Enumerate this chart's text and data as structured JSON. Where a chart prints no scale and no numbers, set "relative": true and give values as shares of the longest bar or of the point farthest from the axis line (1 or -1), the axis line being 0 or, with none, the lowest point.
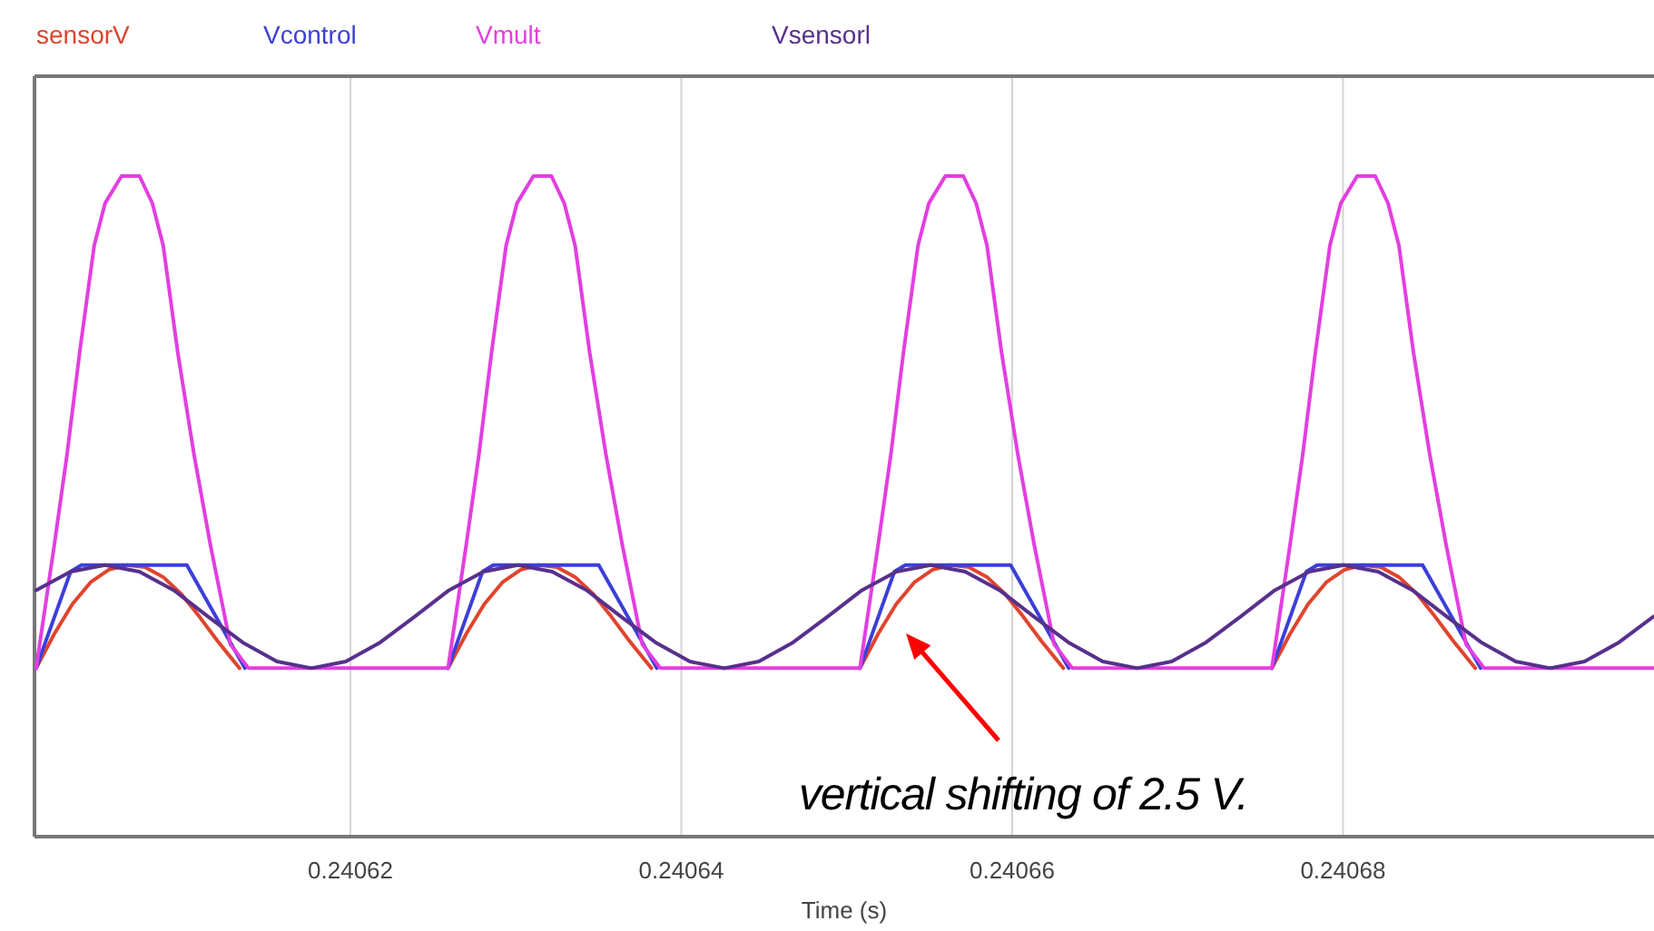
{
  "chart_data": {
    "type": "line",
    "relative": true,
    "xlabel": "Time (s)",
    "xlim": [
      0.2406009,
      0.2406988
    ],
    "xticks": [
      0.24062,
      0.24064,
      0.24066,
      0.24068
    ],
    "grid": "x",
    "legend": "top",
    "tick_labels": "x",
    "line_style": "solid",
    "marker": "none",
    "annotations": [
      "vertical shifting of 2.5 V."
    ],
    "series": [
      {
        "name": "sensorV",
        "color": "#e0442e",
        "x": [
          0.240601,
          0.2406021,
          0.24060319,
          0.24060429,
          0.24060539,
          0.24060649,
          0.24060758,
          0.24060868,
          0.24060978,
          0.24061087,
          0.24061197,
          0.24061329,
          0.24062,
          0.2406259,
          0.240627,
          0.24062809,
          0.24062919,
          0.24063029,
          0.24063139,
          0.24063248,
          0.24063358,
          0.24063468,
          0.24063577,
          0.24063687,
          0.24063819,
          0.240645,
          0.2406508,
          0.2406519,
          0.24065299,
          0.24065409,
          0.24065519,
          0.24065629,
          0.24065738,
          0.24065848,
          0.24065958,
          0.24066067,
          0.24066177,
          0.24066309,
          0.24067,
          0.2406757,
          0.2406768,
          0.24067789,
          0.24067899,
          0.24068009,
          0.24068119,
          0.24068228,
          0.24068338,
          0.24068448,
          0.24068557,
          0.24068667,
          0.24068799
        ],
        "values": [
          0.255,
          0.307,
          0.352,
          0.385,
          0.404,
          0.411,
          0.408,
          0.393,
          0.367,
          0.333,
          0.296,
          0.255,
          null,
          0.255,
          0.307,
          0.352,
          0.385,
          0.404,
          0.411,
          0.408,
          0.393,
          0.367,
          0.333,
          0.296,
          0.255,
          null,
          0.255,
          0.307,
          0.352,
          0.385,
          0.404,
          0.411,
          0.408,
          0.393,
          0.367,
          0.333,
          0.296,
          0.255,
          null,
          0.255,
          0.307,
          0.352,
          0.385,
          0.404,
          0.411,
          0.408,
          0.393,
          0.367,
          0.333,
          0.296,
          0.255
        ]
      },
      {
        "name": "Vcontrol",
        "color": "#3c3fd8",
        "x": [
          0.240601,
          0.24060308,
          0.24060374,
          0.24061011,
          0.24061362,
          0.24062,
          0.2406259,
          0.24062798,
          0.24062864,
          0.24063501,
          0.24063852,
          0.240645,
          0.2406508,
          0.24065288,
          0.24065354,
          0.24065991,
          0.24066342,
          0.24067,
          0.2406757,
          0.24067778,
          0.24067844,
          0.24068481,
          0.24068832
        ],
        "values": [
          0.255,
          0.401,
          0.411,
          0.411,
          0.255,
          null,
          0.255,
          0.401,
          0.411,
          0.411,
          0.255,
          null,
          0.255,
          0.401,
          0.411,
          0.411,
          0.255,
          null,
          0.255,
          0.401,
          0.411,
          0.411,
          0.255
        ]
      },
      {
        "name": "Vmult",
        "color": "#e23fe0",
        "x": [
          0.240601,
          0.2406021,
          0.24060287,
          0.24060363,
          0.24060451,
          0.24060517,
          0.24060616,
          0.24060725,
          0.24060802,
          0.24060868,
          0.24060956,
          0.24061054,
          0.24061153,
          0.24061274,
          0.24061384,
          0.2406259,
          0.240627,
          0.24062777,
          0.24062853,
          0.24062941,
          0.24063007,
          0.24063106,
          0.24063215,
          0.24063292,
          0.24063358,
          0.24063446,
          0.24063544,
          0.24063643,
          0.24063764,
          0.24063874,
          0.2406508,
          0.2406519,
          0.24065267,
          0.24065343,
          0.24065431,
          0.24065497,
          0.24065596,
          0.24065705,
          0.24065782,
          0.24065848,
          0.24065936,
          0.24066034,
          0.24066133,
          0.24066254,
          0.24066364,
          0.2406757,
          0.2406768,
          0.24067757,
          0.24067833,
          0.24067921,
          0.24067987,
          0.24068086,
          0.24068195,
          0.24068272,
          0.24068338,
          0.24068426,
          0.24068524,
          0.24068623,
          0.24068744,
          0.24068854,
          0.2406988
        ],
        "values": [
          0.255,
          0.442,
          0.579,
          0.733,
          0.895,
          0.959,
          1,
          1,
          0.959,
          0.895,
          0.733,
          0.579,
          0.442,
          0.291,
          0.255,
          0.255,
          0.442,
          0.579,
          0.733,
          0.895,
          0.959,
          1,
          1,
          0.959,
          0.895,
          0.733,
          0.579,
          0.442,
          0.291,
          0.255,
          0.255,
          0.442,
          0.579,
          0.733,
          0.895,
          0.959,
          1,
          1,
          0.959,
          0.895,
          0.733,
          0.579,
          0.442,
          0.291,
          0.255,
          0.255,
          0.442,
          0.579,
          0.733,
          0.895,
          0.959,
          1,
          1,
          0.959,
          0.895,
          0.733,
          0.579,
          0.442,
          0.291,
          0.255,
          0.255
        ]
      },
      {
        "name": "Vsensorl",
        "color": "#57308c",
        "x": [
          0.240601,
          0.24060308,
          0.24060516,
          0.24060724,
          0.24060932,
          0.2406114,
          0.24061348,
          0.24061556,
          0.24061764,
          0.24061972,
          0.2406218,
          0.24062388,
          0.24062596,
          0.24062804,
          0.24063012,
          0.2406322,
          0.24063428,
          0.24063636,
          0.24063844,
          0.24064052,
          0.2406426,
          0.24064468,
          0.24064676,
          0.24064884,
          0.24065092,
          0.240653,
          0.24065508,
          0.24065716,
          0.24065924,
          0.24066132,
          0.2406634,
          0.24066548,
          0.24066756,
          0.24066964,
          0.24067172,
          0.2406738,
          0.24067588,
          0.24067796,
          0.24068004,
          0.24068212,
          0.2406842,
          0.24068628,
          0.24068836,
          0.24069044,
          0.24069252,
          0.2406946,
          0.24069668,
          0.24069876
        ],
        "values": [
          0.373,
          0.401,
          0.411,
          0.401,
          0.373,
          0.333,
          0.294,
          0.265,
          0.255,
          0.265,
          0.294,
          0.333,
          0.373,
          0.401,
          0.411,
          0.401,
          0.373,
          0.333,
          0.294,
          0.265,
          0.255,
          0.265,
          0.294,
          0.333,
          0.373,
          0.401,
          0.411,
          0.401,
          0.373,
          0.333,
          0.294,
          0.265,
          0.255,
          0.265,
          0.294,
          0.333,
          0.373,
          0.401,
          0.411,
          0.401,
          0.373,
          0.333,
          0.294,
          0.265,
          0.255,
          0.265,
          0.294,
          0.333
        ]
      }
    ]
  }
}
